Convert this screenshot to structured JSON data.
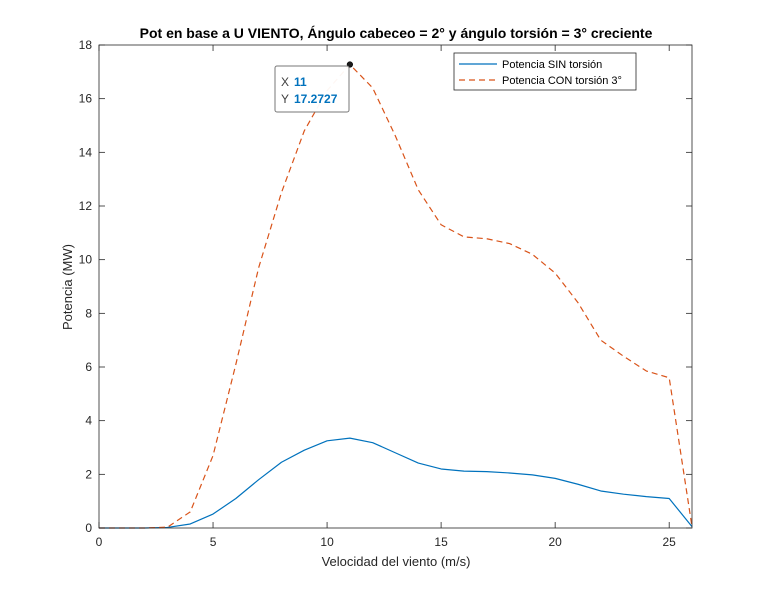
{
  "chart_data": {
    "type": "line",
    "title": "Pot en base a U VIENTO, Ángulo cabeceo = 2° y ángulo torsión = 3° creciente",
    "xlabel": "Velocidad del viento (m/s)",
    "ylabel": "Potencia (MW)",
    "xlim": [
      0,
      26
    ],
    "ylim": [
      0,
      18
    ],
    "xticks": [
      0,
      5,
      10,
      15,
      20,
      25
    ],
    "yticks": [
      0,
      2,
      4,
      6,
      8,
      10,
      12,
      14,
      16,
      18
    ],
    "x_tick_labels": [
      "0",
      "5",
      "10",
      "15",
      "20",
      "25"
    ],
    "y_tick_labels": [
      "0",
      "2",
      "4",
      "6",
      "8",
      "10",
      "12",
      "14",
      "16",
      "18"
    ],
    "grid": false,
    "legend_position": "top-right",
    "x": [
      0,
      1,
      2,
      3,
      4,
      5,
      6,
      7,
      8,
      9,
      10,
      11,
      12,
      13,
      14,
      15,
      16,
      17,
      18,
      19,
      20,
      21,
      22,
      23,
      24,
      25,
      26
    ],
    "series": [
      {
        "name": "Potencia SIN torsión",
        "color": "#0072BD",
        "style": "solid",
        "values": [
          0,
          0,
          0,
          0.02,
          0.15,
          0.52,
          1.1,
          1.8,
          2.45,
          2.9,
          3.25,
          3.35,
          3.18,
          2.8,
          2.42,
          2.2,
          2.12,
          2.1,
          2.05,
          1.98,
          1.85,
          1.63,
          1.38,
          1.26,
          1.17,
          1.1,
          0.05
        ]
      },
      {
        "name": "Potencia CON torsión 3°",
        "color": "#D95319",
        "style": "dashed",
        "values": [
          0,
          0,
          0,
          0.03,
          0.6,
          2.7,
          6.1,
          9.7,
          12.5,
          14.8,
          16.3,
          17.2727,
          16.4,
          14.6,
          12.6,
          11.3,
          10.85,
          10.78,
          10.6,
          10.2,
          9.5,
          8.4,
          7.0,
          6.4,
          5.85,
          5.6,
          0.05
        ]
      }
    ],
    "datatip": {
      "x_prefix": "X",
      "x_value": "11",
      "y_prefix": "Y",
      "y_value": "17.2727",
      "x": 11,
      "y": 17.2727
    }
  }
}
